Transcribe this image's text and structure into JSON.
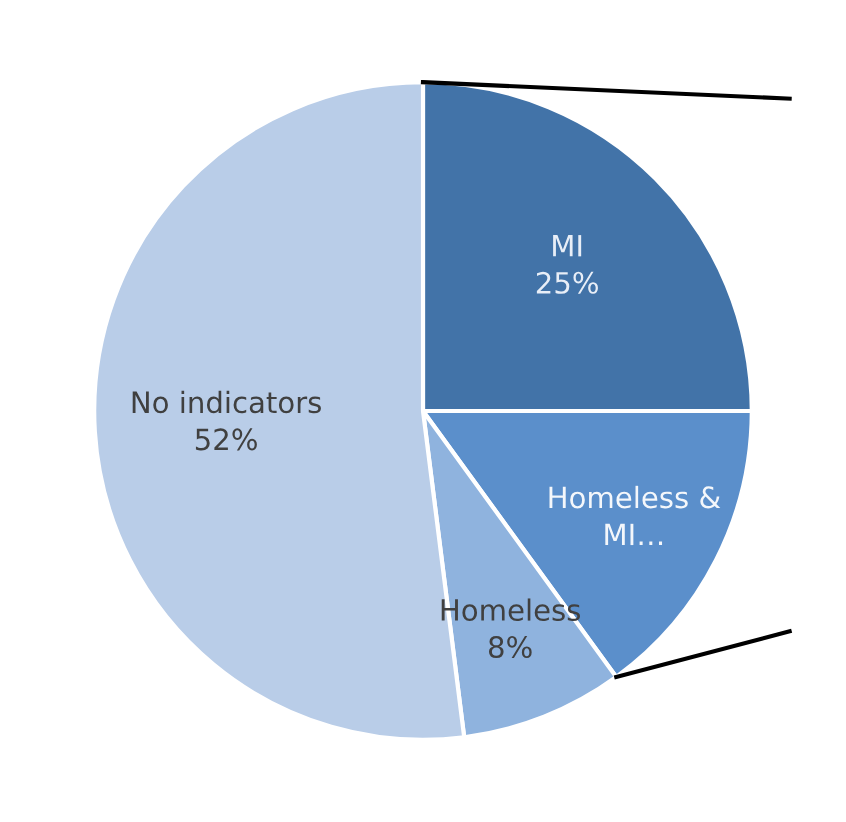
{
  "chart_data": {
    "type": "pie",
    "categories": [
      "MI",
      "Homeless & MI…",
      "Homeless",
      "No indicators"
    ],
    "values": [
      25,
      15,
      8,
      52
    ],
    "value_labels": [
      "25%",
      null,
      "8%",
      "52%"
    ],
    "colors": [
      "#4273a8",
      "#5b8fcb",
      "#8fb3de",
      "#b9cde8"
    ]
  }
}
